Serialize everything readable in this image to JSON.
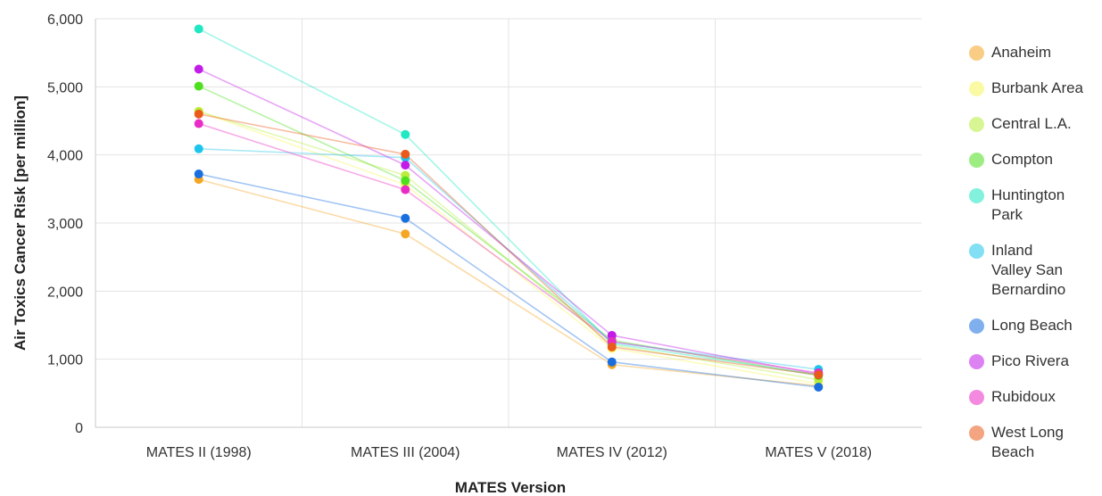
{
  "chart_data": {
    "type": "line",
    "title": "",
    "xlabel": "MATES Version",
    "ylabel": "Air Toxics Cancer Risk [per million]",
    "categories": [
      "MATES II (1998)",
      "MATES III (2004)",
      "MATES IV (2012)",
      "MATES V (2018)"
    ],
    "ylim": [
      0,
      6000
    ],
    "yticks": [
      0,
      1000,
      2000,
      3000,
      4000,
      5000,
      6000
    ],
    "ytick_labels": [
      "0",
      "1,000",
      "2,000",
      "3,000",
      "4,000",
      "5,000",
      "6,000"
    ],
    "grid": true,
    "legend_position": "right",
    "series": [
      {
        "name": "Anaheim",
        "color": "#f5a623",
        "values": [
          3640,
          2840,
          920,
          610
        ]
      },
      {
        "name": "Burbank Area",
        "color": "#f7f75a",
        "values": [
          4640,
          3560,
          1160,
          640
        ]
      },
      {
        "name": "Central L.A.",
        "color": "#b9ee3c",
        "values": [
          4640,
          3700,
          1210,
          700
        ]
      },
      {
        "name": "Compton",
        "color": "#4ee01e",
        "values": [
          5010,
          3620,
          1280,
          760
        ]
      },
      {
        "name": "Huntington Park",
        "color": "#1fe8c3",
        "values": [
          5850,
          4300,
          1230,
          770
        ]
      },
      {
        "name": "Inland Valley San Bernardino",
        "color": "#1dc5ec",
        "values": [
          4090,
          3960,
          1250,
          850
        ]
      },
      {
        "name": "Long Beach",
        "color": "#1a6fe0",
        "values": [
          3720,
          3070,
          960,
          590
        ]
      },
      {
        "name": "Pico Rivera",
        "color": "#c21de8",
        "values": [
          5260,
          3850,
          1350,
          780
        ]
      },
      {
        "name": "Rubidoux",
        "color": "#ea2cc6",
        "values": [
          4460,
          3490,
          1260,
          800
        ]
      },
      {
        "name": "West Long Beach",
        "color": "#ea5a1a",
        "values": [
          4600,
          4010,
          1180,
          770
        ]
      }
    ]
  },
  "legend": {
    "items": [
      {
        "lines": [
          "Anaheim"
        ]
      },
      {
        "lines": [
          "Burbank Area"
        ]
      },
      {
        "lines": [
          "Central L.A."
        ]
      },
      {
        "lines": [
          "Compton"
        ]
      },
      {
        "lines": [
          "Huntington",
          "Park"
        ]
      },
      {
        "lines": [
          "Inland",
          "Valley San",
          "Bernardino"
        ]
      },
      {
        "lines": [
          "Long Beach"
        ]
      },
      {
        "lines": [
          "Pico Rivera"
        ]
      },
      {
        "lines": [
          "Rubidoux"
        ]
      },
      {
        "lines": [
          "West Long",
          "Beach"
        ]
      }
    ]
  }
}
